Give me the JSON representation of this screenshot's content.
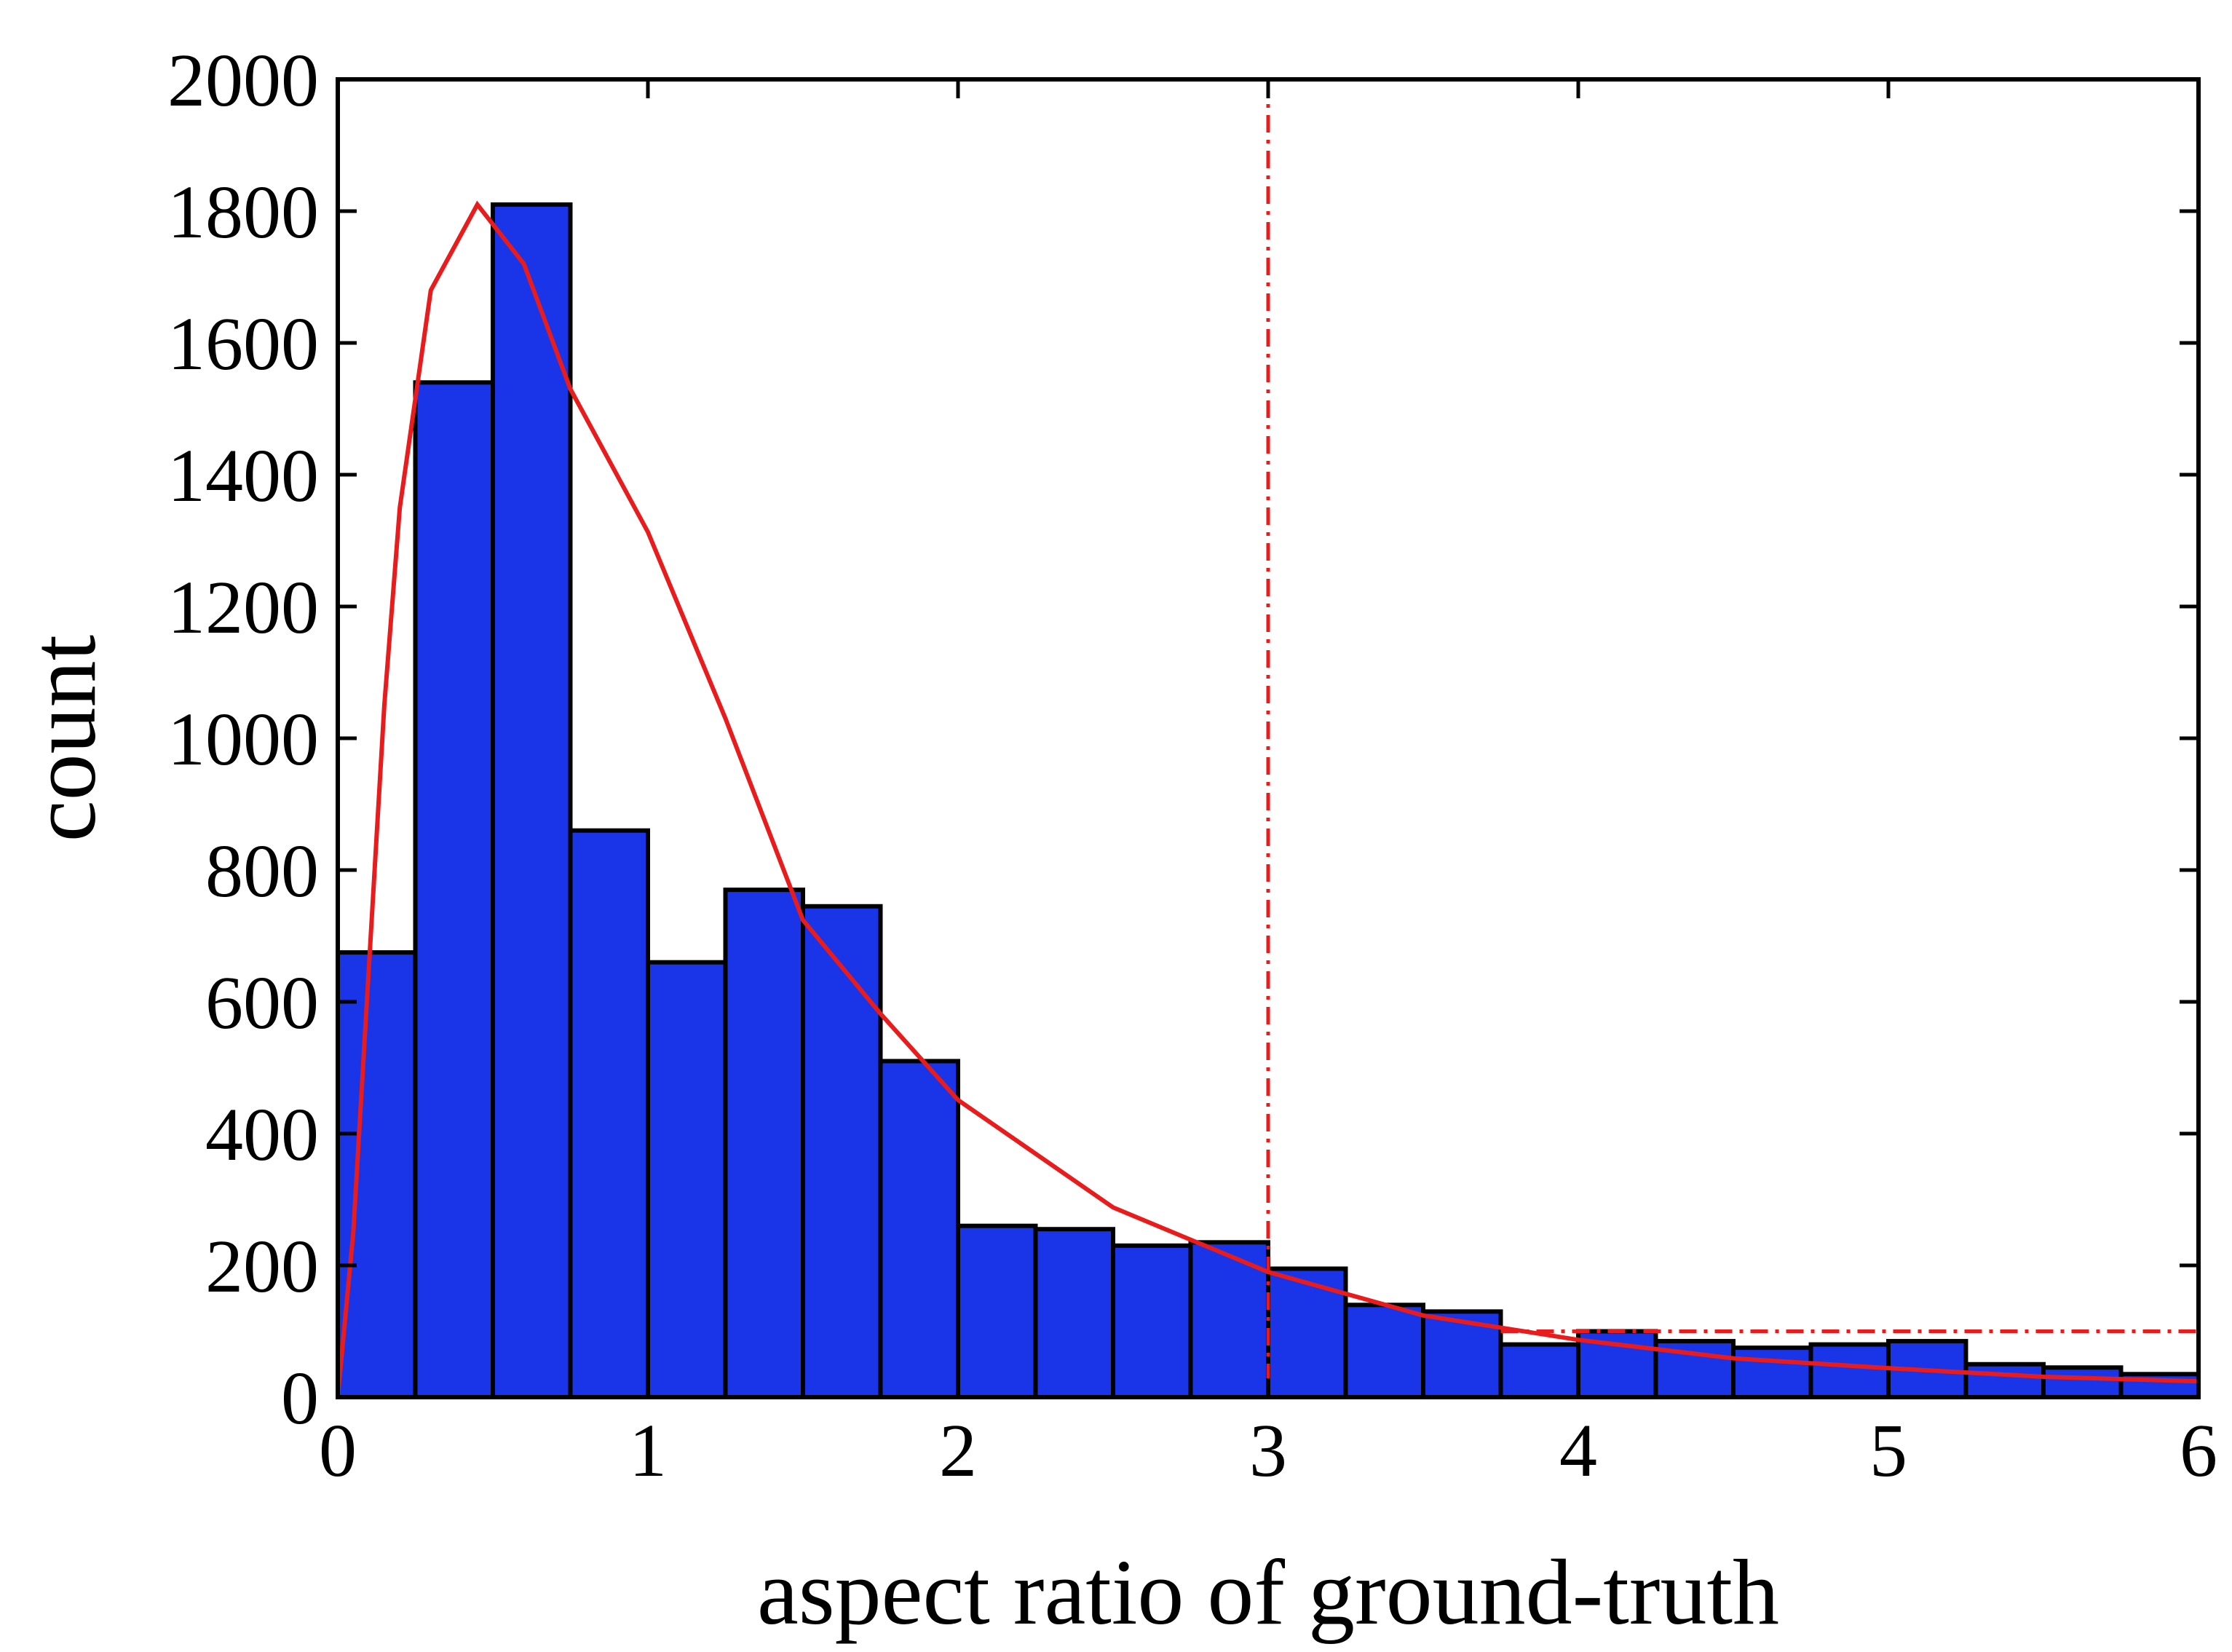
{
  "chart_data": {
    "type": "histogram",
    "xlabel": "aspect ratio of ground-truth",
    "ylabel": "count",
    "bins": [
      0,
      0.25,
      0.5,
      0.75,
      1,
      1.25,
      1.5,
      1.75,
      2,
      2.25,
      2.5,
      2.75,
      3,
      3.25,
      3.5,
      3.75,
      4,
      4.25,
      4.5,
      4.75,
      5,
      5.25,
      5.5,
      5.75,
      6
    ],
    "values": [
      675,
      1540,
      1810,
      860,
      660,
      770,
      745,
      510,
      260,
      255,
      230,
      235,
      195,
      140,
      130,
      80,
      100,
      85,
      75,
      80,
      85,
      50,
      45,
      35
    ],
    "color": "#1a35e8",
    "fit": {
      "color": "#e81c1c",
      "x": [
        0,
        0.05,
        0.1,
        0.15,
        0.2,
        0.3,
        0.45,
        0.6,
        0.75,
        1,
        1.25,
        1.5,
        1.75,
        2,
        2.5,
        3,
        3.5,
        4,
        4.5,
        5,
        5.5,
        6
      ],
      "values": [
        0,
        250,
        650,
        1050,
        1350,
        1680,
        1810,
        1720,
        1530,
        1313,
        1030,
        724,
        582,
        451,
        288,
        190,
        124,
        87,
        59,
        44,
        31,
        24
      ]
    },
    "vlines": [
      3
    ],
    "hlines": [
      {
        "y": 100,
        "x": [
          3.75,
          6
        ]
      }
    ],
    "xlim": [
      0,
      6
    ],
    "xticks": [
      0,
      1,
      2,
      3,
      4,
      5,
      6
    ],
    "ylim": [
      0,
      2000
    ],
    "yticks": [
      0,
      200,
      400,
      600,
      800,
      1000,
      1200,
      1400,
      1600,
      1800,
      2000
    ]
  }
}
